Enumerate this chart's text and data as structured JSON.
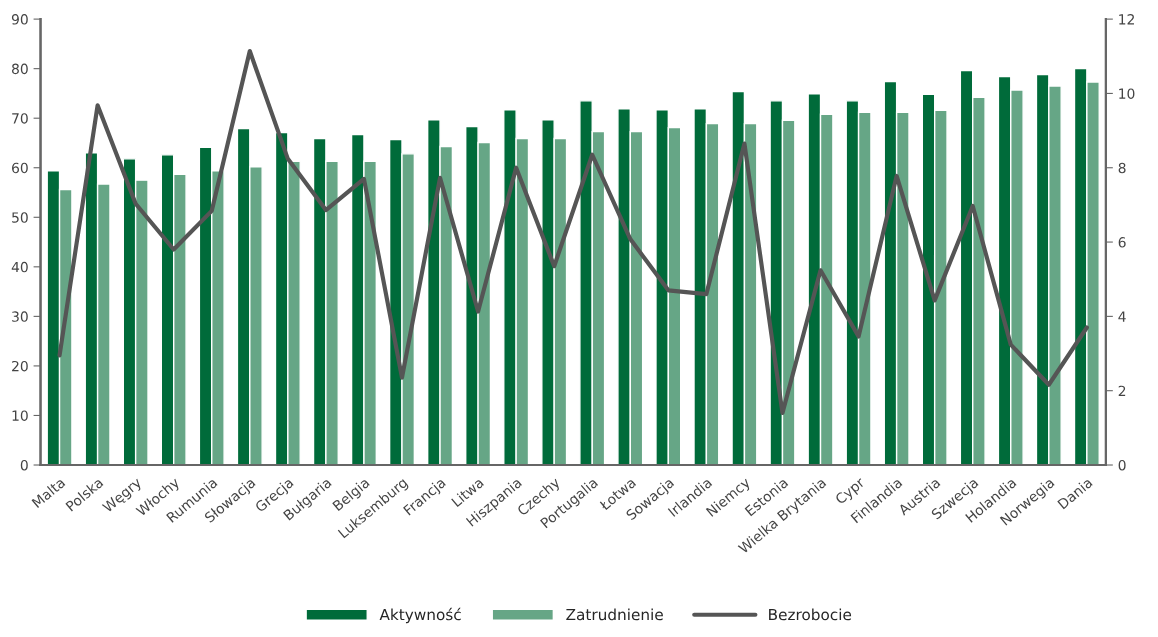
{
  "chart_data": {
    "type": "bar",
    "categories": [
      "Malta",
      "Polska",
      "Węgry",
      "Włochy",
      "Rumunia",
      "Słowacja",
      "Grecja",
      "Bułgaria",
      "Belgia",
      "Luksemburg",
      "Francja",
      "Litwa",
      "Hiszpania",
      "Czechy",
      "Portugalia",
      "Łotwa",
      "Sowacja",
      "Irlandia",
      "Niemcy",
      "Estonia",
      "Wielka Brytania",
      "Cypr",
      "Finlandia",
      "Austria",
      "Szwecja",
      "Holandia",
      "Norwegia",
      "Dania"
    ],
    "series": [
      {
        "name": "Aktywność",
        "color": "#006b3a",
        "values": [
          59.4,
          63.0,
          61.8,
          62.6,
          64.1,
          67.9,
          67.1,
          65.9,
          66.7,
          65.7,
          69.7,
          68.3,
          71.7,
          69.7,
          73.5,
          71.9,
          71.7,
          71.9,
          75.4,
          73.5,
          74.9,
          73.5,
          77.4,
          74.8,
          79.6,
          78.4,
          78.8,
          80.0
        ]
      },
      {
        "name": "Zatrudnienie",
        "color": "#66a686",
        "values": [
          55.6,
          56.7,
          57.5,
          58.7,
          59.4,
          60.2,
          61.3,
          61.3,
          61.3,
          62.8,
          64.3,
          65.1,
          65.9,
          65.9,
          67.3,
          67.3,
          68.1,
          68.9,
          68.9,
          69.6,
          70.8,
          71.2,
          71.2,
          71.6,
          74.2,
          75.7,
          76.5,
          77.3
        ]
      },
      {
        "name": "Bezrobocie",
        "type": "line",
        "axis": "y2",
        "color": "#555555",
        "values": [
          2.95,
          9.68,
          7.03,
          5.8,
          6.84,
          11.14,
          8.24,
          6.86,
          7.7,
          2.35,
          7.73,
          4.13,
          8.0,
          5.35,
          8.35,
          6.08,
          4.7,
          4.6,
          8.65,
          1.4,
          5.24,
          3.46,
          7.78,
          4.43,
          6.97,
          3.24,
          2.16,
          3.7
        ]
      }
    ],
    "ylim": [
      0,
      90
    ],
    "yticks": [
      0,
      10,
      20,
      30,
      40,
      50,
      60,
      70,
      80,
      90
    ],
    "y2lim": [
      0,
      12
    ],
    "y2ticks": [
      0,
      2,
      4,
      6,
      8,
      10,
      12
    ],
    "grid": false,
    "legend": "bottom",
    "marker": "none",
    "line_style": "solid"
  }
}
